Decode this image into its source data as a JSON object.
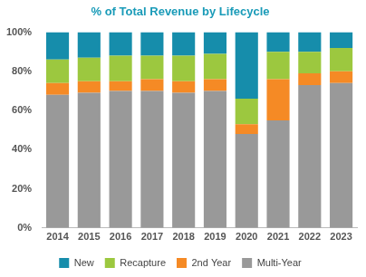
{
  "chart_data": {
    "type": "bar",
    "title": "% of Total Revenue by Lifecycle",
    "categories": [
      "2014",
      "2015",
      "2016",
      "2017",
      "2018",
      "2019",
      "2020",
      "2021",
      "2022",
      "2023"
    ],
    "series": [
      {
        "name": "New",
        "color": "#168dab",
        "values": [
          14,
          13,
          12,
          12,
          12,
          11,
          34,
          10,
          10,
          8
        ]
      },
      {
        "name": "Recapture",
        "color": "#9cc83f",
        "values": [
          12,
          12,
          13,
          12,
          13,
          13,
          13,
          14,
          11,
          12
        ]
      },
      {
        "name": "2nd Year",
        "color": "#f58a25",
        "values": [
          6,
          6,
          5,
          6,
          6,
          6,
          5,
          21,
          6,
          6
        ]
      },
      {
        "name": "Multi-Year",
        "color": "#999999",
        "values": [
          68,
          69,
          70,
          70,
          69,
          70,
          48,
          55,
          73,
          74
        ]
      }
    ],
    "ylim": [
      0,
      100
    ],
    "yticks": [
      {
        "value": 0,
        "label": "0%"
      },
      {
        "value": 20,
        "label": "20%"
      },
      {
        "value": 40,
        "label": "40%"
      },
      {
        "value": 60,
        "label": "60%"
      },
      {
        "value": 80,
        "label": "80%"
      },
      {
        "value": 100,
        "label": "100%"
      }
    ],
    "stacked": true,
    "grid": false,
    "legend": "bottom"
  }
}
